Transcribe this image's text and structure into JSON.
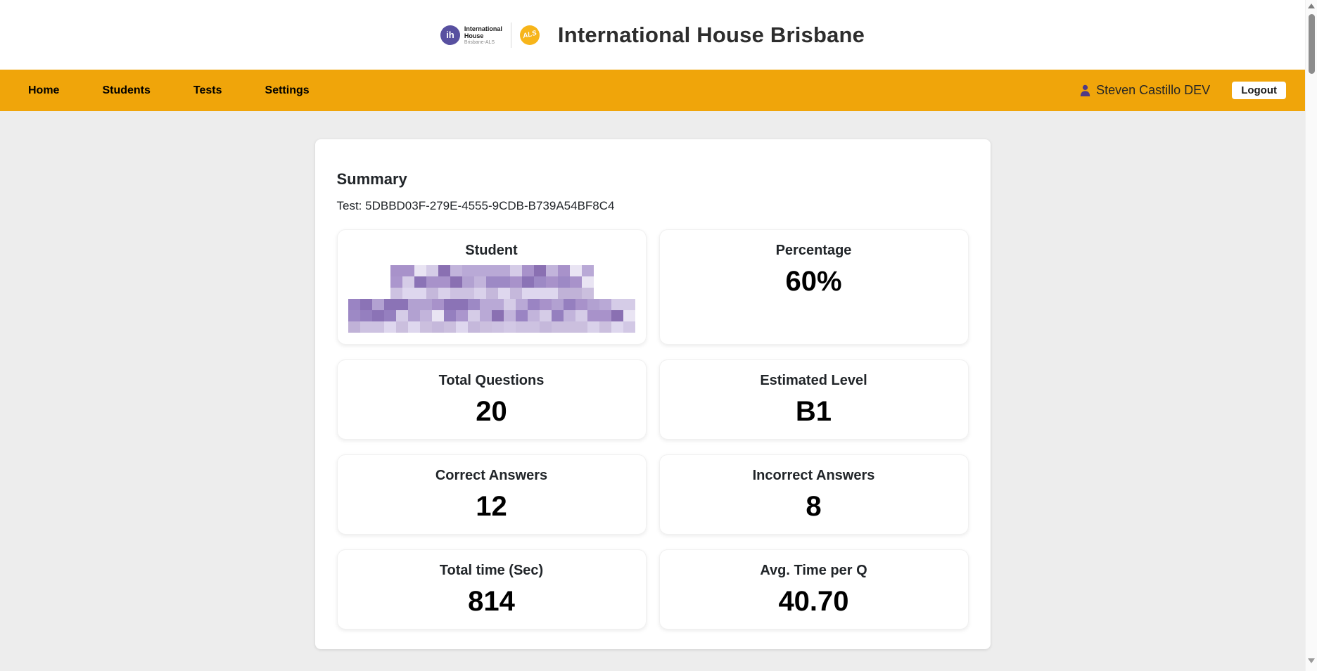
{
  "header": {
    "title": "International House Brisbane",
    "logo": {
      "ih_text": "ih",
      "name_line1": "International",
      "name_line2": "House",
      "subtitle": "Brisbane-ALS",
      "als_text": "ALS"
    }
  },
  "nav": {
    "items": [
      "Home",
      "Students",
      "Tests",
      "Settings"
    ],
    "user": "Steven Castillo DEV",
    "logout_label": "Logout"
  },
  "summary": {
    "heading": "Summary",
    "test_label": "Test: 5DBBD03F-279E-4555-9CDB-B739A54BF8C4",
    "cards": [
      {
        "title": "Student",
        "value": "",
        "redacted": true
      },
      {
        "title": "Percentage",
        "value": "60%"
      },
      {
        "title": "Total Questions",
        "value": "20"
      },
      {
        "title": "Estimated Level",
        "value": "B1"
      },
      {
        "title": "Correct Answers",
        "value": "12"
      },
      {
        "title": "Incorrect Answers",
        "value": "8"
      },
      {
        "title": "Total time (Sec)",
        "value": "814"
      },
      {
        "title": "Avg. Time per Q",
        "value": "40.70"
      }
    ]
  },
  "colors": {
    "navbar_orange": "#F0A50A",
    "ih_purple": "#5850A0",
    "als_yellow": "#F7B51A",
    "user_icon_purple": "#503A85",
    "page_background": "#EDEDED"
  },
  "redaction_mosaic": {
    "dark_palette": [
      "#9a84c3",
      "#8b73b6",
      "#a892ca",
      "#b2a1d1",
      "#c2b4db",
      "#8a70b2",
      "#b9a9d6",
      "#d5cce7",
      "#9d89c5",
      "#e9e4f3",
      "#957fbf",
      "#ab96cd"
    ],
    "light_palette": [
      "#cdc2e1",
      "#d9d1ea",
      "#c5b8db",
      "#ded7ee",
      "#cbbfde",
      "#d2c8e5",
      "#c0b2d7"
    ],
    "blocks": [
      {
        "cols": 17,
        "rows": [
          "dark",
          "dark",
          "light"
        ]
      },
      {
        "cols": 24,
        "rows": [
          "dark",
          "dark",
          "light"
        ]
      }
    ]
  }
}
